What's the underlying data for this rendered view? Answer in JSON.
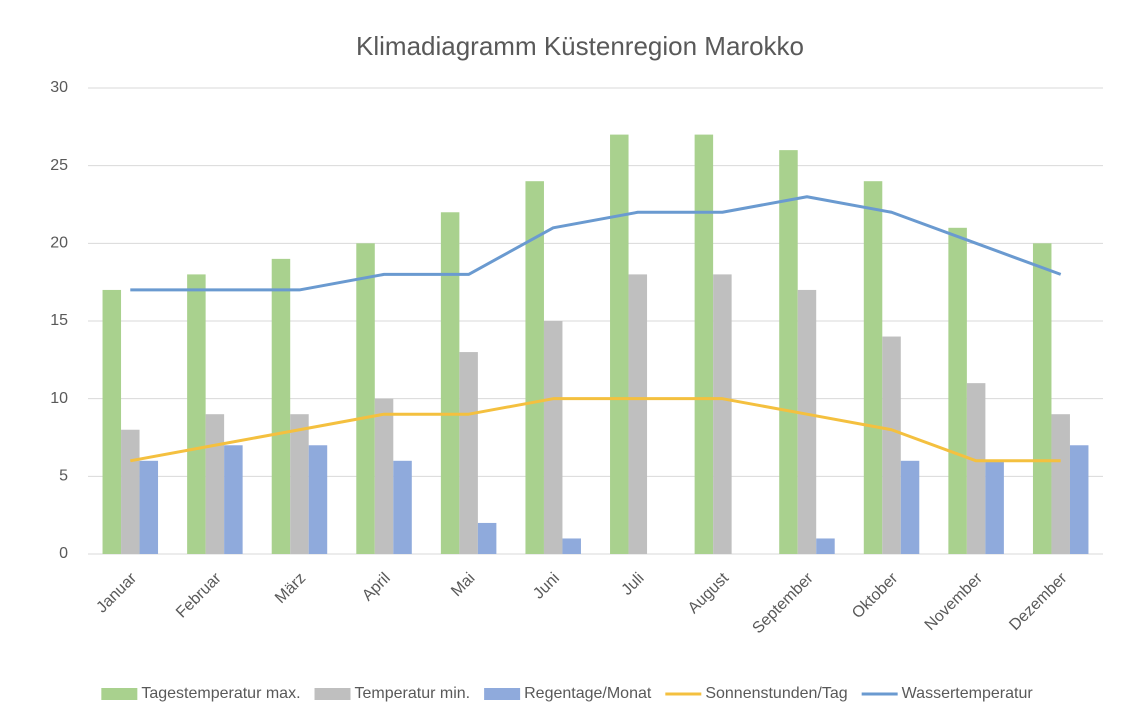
{
  "chart_data": {
    "type": "bar",
    "title": "Klimadiagramm Küstenregion Marokko",
    "categories": [
      "Januar",
      "Februar",
      "März",
      "April",
      "Mai",
      "Juni",
      "Juli",
      "August",
      "September",
      "Oktober",
      "November",
      "Dezember"
    ],
    "series": [
      {
        "name": "Tagestemperatur max.",
        "type": "bar",
        "color": "#a9d18e",
        "values": [
          17,
          18,
          19,
          20,
          22,
          24,
          27,
          27,
          26,
          24,
          21,
          20
        ]
      },
      {
        "name": "Temperatur min.",
        "type": "bar",
        "color": "#bfbfbf",
        "values": [
          8,
          9,
          9,
          10,
          13,
          15,
          18,
          18,
          17,
          14,
          11,
          9
        ]
      },
      {
        "name": "Regentage/Monat",
        "type": "bar",
        "color": "#8faadc",
        "values": [
          6,
          7,
          7,
          6,
          2,
          1,
          0,
          0,
          1,
          6,
          6,
          7
        ]
      },
      {
        "name": "Sonnenstunden/Tag",
        "type": "line",
        "color": "#f4c03f",
        "values": [
          6,
          7,
          8,
          9,
          9,
          10,
          10,
          10,
          9,
          8,
          6,
          6
        ]
      },
      {
        "name": "Wassertemperatur",
        "type": "line",
        "color": "#6a9ad0",
        "values": [
          17,
          17,
          17,
          18,
          18,
          21,
          22,
          22,
          23,
          22,
          20,
          18
        ]
      }
    ],
    "ylim": [
      0,
      30
    ],
    "yticks": [
      0,
      5,
      10,
      15,
      20,
      25,
      30
    ],
    "grid": true,
    "legend": "bottom"
  }
}
